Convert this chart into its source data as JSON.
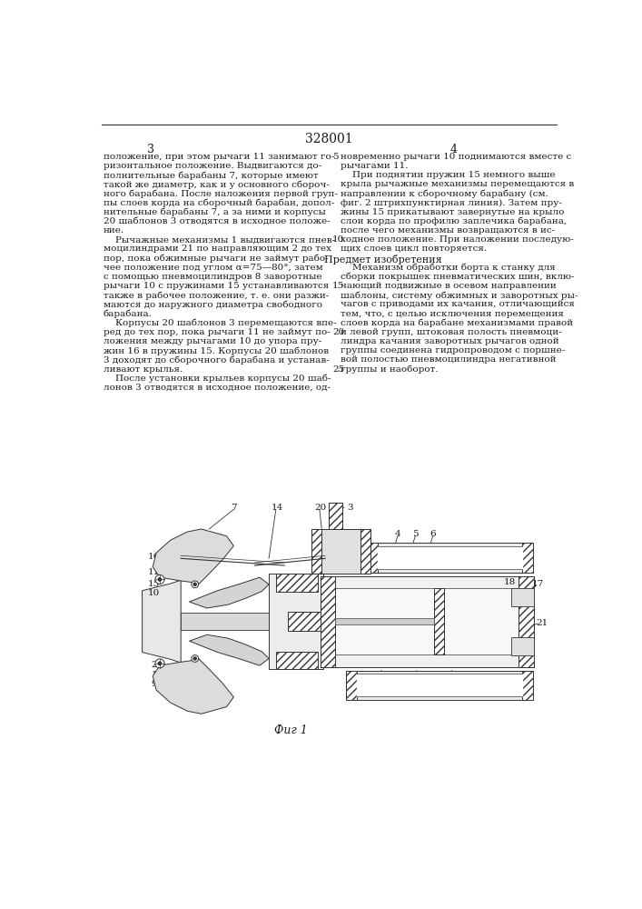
{
  "page_number": "328001",
  "col_left_number": "3",
  "col_right_number": "4",
  "background_color": "#ffffff",
  "text_color": "#1a1a1a",
  "font_size_body": 7.5,
  "font_size_header": 9,
  "left_col_text": [
    "положение, при этом рычаги 11 занимают го-",
    "ризонтальное положение. Выдвигаются до-",
    "полнительные барабаны 7, которые имеют",
    "такой же диаметр, как и у основного сбороч-",
    "ного барабана. После наложения первой груп-",
    "пы слоев корда на сборочный барабан, допол-",
    "нительные барабаны 7, а за ними и корпусы",
    "20 шаблонов 3 отводятся в исходное положе-",
    "ние.",
    "    Рычажные механизмы 1 выдвигаются пнев-",
    "моцилиндрами 21 по направляющим 2 до тех",
    "пор, пока обжимные рычаги не займут рабо-",
    "чее положение под углом α=75—80°, затем",
    "с помощью пневмоцилиндров 8 заворотные",
    "рычаги 10 с пружинами 15 устанавливаются",
    "также в рабочее положение, т. е. они разжи-",
    "маются до наружного диаметра свободного",
    "барабана.",
    "    Корпусы 20 шаблонов 3 перемещаются впе-",
    "ред до тех пор, пока рычаги 11 не займут по-",
    "ложения между рычагами 10 до упора пру-",
    "жин 16 в пружины 15. Корпусы 20 шаблонов",
    "3 доходят до сборочного барабана и устанав-",
    "ливают крылья.",
    "    После установки крыльев корпусы 20 шаб-",
    "лонов 3 отводятся в исходное положение, од-"
  ],
  "right_col_text": [
    "новременно рычаги 10 поднимаются вместе с",
    "рычагами 11.",
    "    При поднятии пружин 15 немного выше",
    "крыла рычажные механизмы перемещаются в",
    "направлении к сборочному барабану (см.",
    "фиг. 2 штрихпунктирная линия). Затем пру-",
    "жины 15 прикатывают завернутые на крыло",
    "слои корда по профилю заплечика барабана,",
    "после чего механизмы возвращаются в ис-",
    "ходное положение. При наложении последую-",
    "щих слоев цикл повторяется.",
    "HEADER:Предмет изобретения",
    "    Механизм обработки борта к станку для",
    "сборки покрышек пневматических шин, вклю-",
    "чающий подвижные в осевом направлении",
    "шаблоны, систему обжимных и заворотных ры-",
    "чагов с приводами их качания, отличающийся",
    "тем, что, с целью исключения перемещения",
    "слоев корда на барабане механизмами правой",
    "и левой групп, штоковая полость пневмоци-",
    "линдра качания заворотных рычагов одной",
    "группы соединена гидропроводом с поршне-",
    "вой полостью пневмоцилиндра негативной",
    "группы и наоборот."
  ],
  "line_number_map": {
    "0": 5,
    "9": 10,
    "14": 15,
    "19": 20,
    "23": 25
  },
  "fig_caption": "Фиг 1"
}
